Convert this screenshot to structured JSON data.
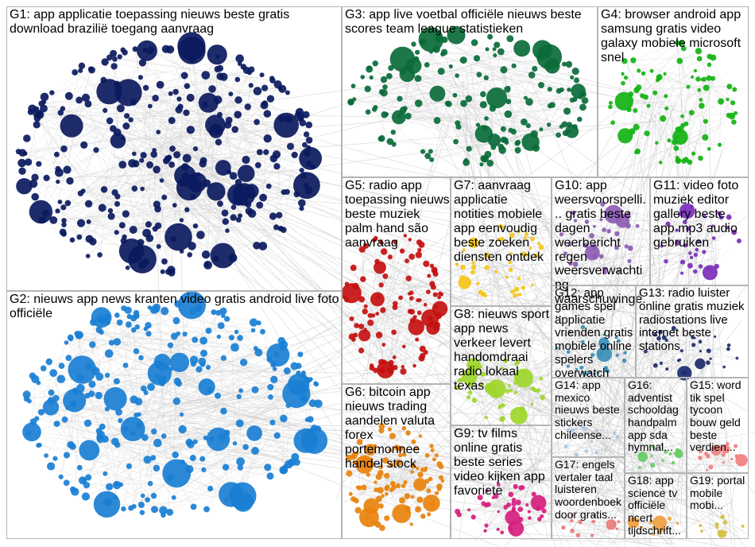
{
  "chart_data": {
    "type": "network-graph",
    "groups": [
      {
        "id": "G1",
        "label": "G1: app applicatie toepassing nieuws beste gratis download brazilië toegang aanvraag",
        "color": "#0b1a5e"
      },
      {
        "id": "G2",
        "label": "G2: nieuws app news kranten video gratis android live foto officiële",
        "color": "#1a7fd4"
      },
      {
        "id": "G3",
        "label": "G3: app live voetbal officiële nieuws beste scores team league statistieken",
        "color": "#0a6b3a"
      },
      {
        "id": "G4",
        "label": "G4: browser android app samsung gratis video galaxy mobiele microsoft snel",
        "color": "#12b312"
      },
      {
        "id": "G5",
        "label": "G5: radio app toepassing nieuws beste muziek palm hand são aanvraag",
        "color": "#c41010"
      },
      {
        "id": "G6",
        "label": "G6: bitcoin app nieuws trading aandelen valuta forex portemonnee handel stock",
        "color": "#e8820c"
      },
      {
        "id": "G7",
        "label": "G7: aanvraag applicatie notities mobiele app eenvoudig beste zoeken diensten ontdek",
        "color": "#f5c518"
      },
      {
        "id": "G8",
        "label": "G8: nieuws sport app news verkeer levert handomdraai radio lokaal texas",
        "color": "#9ed62a"
      },
      {
        "id": "G9",
        "label": "G9: tv films online gratis beste series video kijken app favoriete",
        "color": "#d61e7e"
      },
      {
        "id": "G10",
        "label": "G10: app weersvoorspelli... gratis beste dagen weerbericht regen weersverwachting waarschuwinge...",
        "color": "#8b5db3"
      },
      {
        "id": "G11",
        "label": "G11: video foto muziek editor gallery beste app mp3 audio gebruiken",
        "color": "#7a2eb8"
      },
      {
        "id": "G12",
        "label": "G12: app games spel applicatie vrienden gratis mobiele online spelers overwatch",
        "color": "#3a8fb7"
      },
      {
        "id": "G13",
        "label": "G13: radio luister online gratis muziek radiostations live internet beste stations",
        "color": "#1a2a6e"
      },
      {
        "id": "G14",
        "label": "G14: app mexico nieuws beste stickers chileense...",
        "color": "#a8c8e8"
      },
      {
        "id": "G15",
        "label": "G15: word tik spel tycoon bouw geld beste verdien...",
        "color": "#f08080"
      },
      {
        "id": "G16",
        "label": "G16: adventist schooldag handpalm app sda hymnal...",
        "color": "#66cc66"
      },
      {
        "id": "G17",
        "label": "G17: engels vertaler taal luisteren woordenboek door gratis...",
        "color": "#e87c7c"
      },
      {
        "id": "G18",
        "label": "G18: app science tv officiële ncert tijdschrift...",
        "color": "#f0a040"
      },
      {
        "id": "G19",
        "label": "G19: portal mobile mobi...",
        "color": "#d4c040"
      }
    ]
  }
}
